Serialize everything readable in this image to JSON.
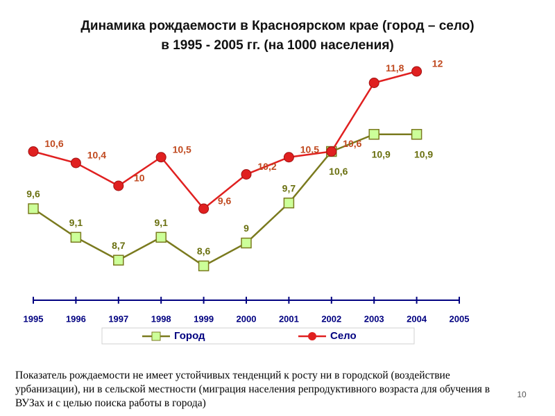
{
  "chart_data": {
    "type": "line",
    "title": [
      "Динамика рождаемости в Красноярском крае (город – село)",
      "в 1995 - 2005 гг. (на 1000 населения)"
    ],
    "x": [
      1995,
      1996,
      1997,
      1998,
      1999,
      2000,
      2001,
      2002,
      2003,
      2004
    ],
    "xlim": [
      1995,
      2005
    ],
    "xticks": [
      1995,
      1996,
      1997,
      1998,
      1999,
      2000,
      2001,
      2002,
      2003,
      2004,
      2005
    ],
    "ylim": [
      8,
      12
    ],
    "legend": "bottom",
    "series": [
      {
        "name": "Город",
        "color": "#7a7a1e",
        "marker": "square",
        "values": [
          9.6,
          9.1,
          8.7,
          9.1,
          8.6,
          9,
          9.7,
          10.6,
          10.9,
          10.9
        ],
        "value_labels": [
          "9,6",
          "9,1",
          "8,7",
          "9,1",
          "8,6",
          "9",
          "9,7",
          "10,6",
          "10,9",
          "10,9"
        ]
      },
      {
        "name": "Село",
        "color": "#e02020",
        "marker": "circle",
        "values": [
          10.6,
          10.4,
          10,
          10.5,
          9.6,
          10.2,
          10.5,
          10.6,
          11.8,
          12
        ],
        "value_labels": [
          "10,6",
          "10,4",
          "10",
          "10,5",
          "9,6",
          "10,2",
          "10,5",
          "10,6",
          "11,8",
          "12"
        ]
      }
    ],
    "note": "Показатель рождаемости не имеет устойчивых тенденций к росту ни в городской (воздействие урбанизации), ни в сельской местности (миграция населения репродуктивного возраста для обучения в ВУЗах и с целью поиска работы в города)",
    "page_number": "10"
  }
}
